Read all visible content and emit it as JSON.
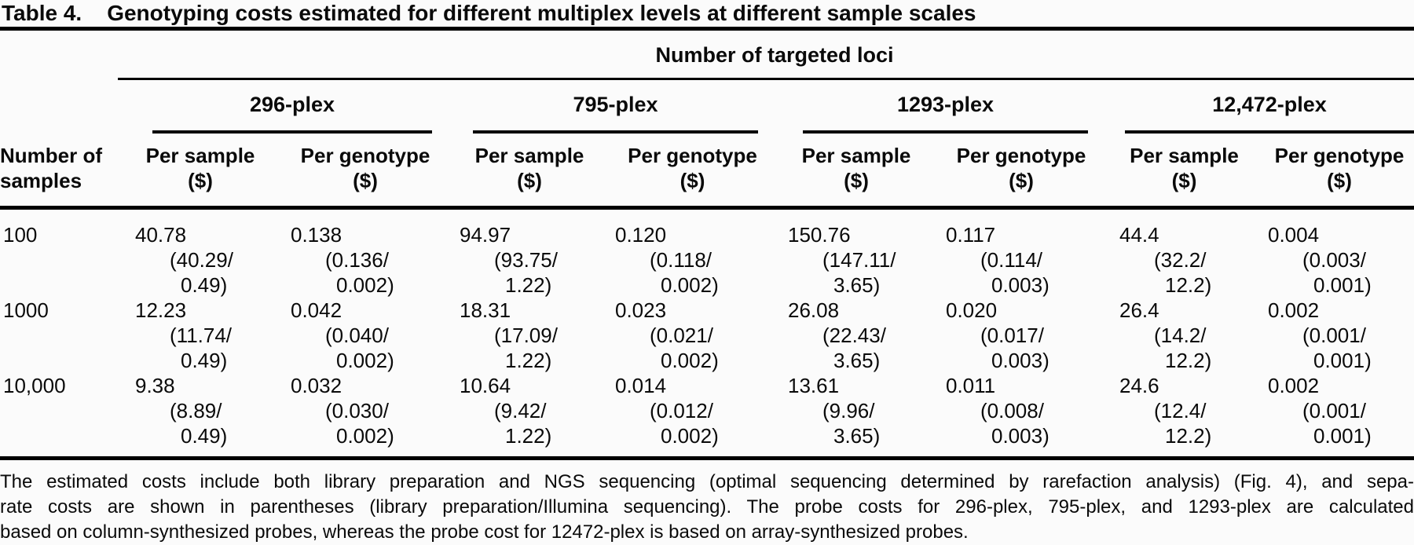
{
  "title": {
    "label": "Table 4.",
    "text": "Genotyping costs estimated for different multiplex levels at different sample scales"
  },
  "table": {
    "spanner": "Number of targeted loci",
    "stub_header": {
      "line1": "Number of",
      "line2": "samples"
    },
    "groups": [
      "296-plex",
      "795-plex",
      "1293-plex",
      "12,472-plex"
    ],
    "columns": [
      {
        "line1": "Per sample",
        "line2": "($)"
      },
      {
        "line1": "Per genotype",
        "line2": "($)"
      },
      {
        "line1": "Per sample",
        "line2": "($)"
      },
      {
        "line1": "Per genotype",
        "line2": "($)"
      },
      {
        "line1": "Per sample",
        "line2": "($)"
      },
      {
        "line1": "Per genotype",
        "line2": "($)"
      },
      {
        "line1": "Per sample",
        "line2": "($)"
      },
      {
        "line1": "Per genotype",
        "line2": "($)"
      }
    ],
    "rows": [
      {
        "label": "100",
        "cells": [
          {
            "value": "40.78",
            "paren1": "(40.29/",
            "paren2": "0.49)"
          },
          {
            "value": "0.138",
            "paren1": "(0.136/",
            "paren2": "0.002)"
          },
          {
            "value": "94.97",
            "paren1": "(93.75/",
            "paren2": "1.22)"
          },
          {
            "value": "0.120",
            "paren1": "(0.118/",
            "paren2": "0.002)"
          },
          {
            "value": "150.76",
            "paren1": "(147.11/",
            "paren2": "3.65)"
          },
          {
            "value": "0.117",
            "paren1": "(0.114/",
            "paren2": "0.003)"
          },
          {
            "value": "44.4",
            "paren1": "(32.2/",
            "paren2": "12.2)"
          },
          {
            "value": "0.004",
            "paren1": "(0.003/",
            "paren2": "0.001)"
          }
        ]
      },
      {
        "label": "1000",
        "cells": [
          {
            "value": "12.23",
            "paren1": "(11.74/",
            "paren2": "0.49)"
          },
          {
            "value": "0.042",
            "paren1": "(0.040/",
            "paren2": "0.002)"
          },
          {
            "value": "18.31",
            "paren1": "(17.09/",
            "paren2": "1.22)"
          },
          {
            "value": "0.023",
            "paren1": "(0.021/",
            "paren2": "0.002)"
          },
          {
            "value": "26.08",
            "paren1": "(22.43/",
            "paren2": "3.65)"
          },
          {
            "value": "0.020",
            "paren1": "(0.017/",
            "paren2": "0.003)"
          },
          {
            "value": "26.4",
            "paren1": "(14.2/",
            "paren2": "12.2)"
          },
          {
            "value": "0.002",
            "paren1": "(0.001/",
            "paren2": "0.001)"
          }
        ]
      },
      {
        "label": "10,000",
        "cells": [
          {
            "value": "9.38",
            "paren1": "(8.89/",
            "paren2": "0.49)"
          },
          {
            "value": "0.032",
            "paren1": "(0.030/",
            "paren2": "0.002)"
          },
          {
            "value": "10.64",
            "paren1": "(9.42/",
            "paren2": "1.22)"
          },
          {
            "value": "0.014",
            "paren1": "(0.012/",
            "paren2": "0.002)"
          },
          {
            "value": "13.61",
            "paren1": "(9.96/",
            "paren2": "3.65)"
          },
          {
            "value": "0.011",
            "paren1": "(0.008/",
            "paren2": "0.003)"
          },
          {
            "value": "24.6",
            "paren1": "(12.4/",
            "paren2": "12.2)"
          },
          {
            "value": "0.002",
            "paren1": "(0.001/",
            "paren2": "0.001)"
          }
        ]
      }
    ]
  },
  "footnote": {
    "lines": [
      "The estimated costs include both library preparation and NGS sequencing (optimal sequencing determined by rarefaction analysis) (Fig. 4), and sepa-",
      "rate costs are shown in parentheses (library preparation/Illumina sequencing). The probe costs for 296-plex, 795-plex, and 1293-plex are calculated",
      "based on column-synthesized probes, whereas the probe cost for 12472-plex is based on array-synthesized probes."
    ]
  }
}
